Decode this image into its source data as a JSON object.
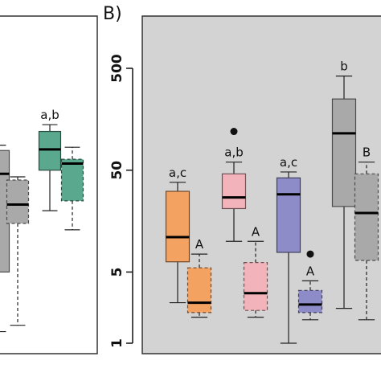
{
  "chart_data": [
    {
      "type": "box",
      "panel": "A",
      "boxes": [
        {
          "group": 1,
          "variant": "solid",
          "color": "#a9a9a9",
          "min": 1.3,
          "q1": 5,
          "median": 46,
          "q3": 78,
          "max": 88,
          "letters": ""
        },
        {
          "group": 1,
          "variant": "dashed",
          "color": "#a9a9a9",
          "min": 1.5,
          "q1": 15,
          "median": 23,
          "q3": 40,
          "max": 43,
          "letters": ""
        },
        {
          "group": 2,
          "variant": "solid",
          "color": "#5aa88e",
          "min": 20,
          "q1": 50,
          "median": 80,
          "q3": 120,
          "max": 140,
          "letters": "a,b"
        },
        {
          "group": 2,
          "variant": "dashed",
          "color": "#5aa88e",
          "min": 13,
          "q1": 25,
          "median": 58,
          "q3": 64,
          "max": 84,
          "letters": ""
        }
      ]
    },
    {
      "type": "box",
      "panel": "B",
      "panel_label": "B)",
      "y_scale": "log",
      "ylim": [
        0.95,
        1000
      ],
      "y_ticks": [
        1,
        5,
        50,
        500
      ],
      "y_tick_labels": [
        "1",
        "5",
        "50",
        "500"
      ],
      "background": "#d3d3d3",
      "boxes": [
        {
          "group": 1,
          "variant": "solid",
          "color": "#f4a261",
          "min": 2.5,
          "q1": 6.3,
          "median": 11,
          "q3": 31,
          "max": 38,
          "outliers": [],
          "letters": "a,c"
        },
        {
          "group": 1,
          "variant": "dashed",
          "color": "#f4a261",
          "min": 1.8,
          "q1": 2.0,
          "median": 2.5,
          "q3": 5.5,
          "max": 7.5,
          "outliers": [],
          "letters": "A"
        },
        {
          "group": 2,
          "variant": "solid",
          "color": "#f2b4ba",
          "min": 10,
          "q1": 21,
          "median": 27,
          "q3": 46,
          "max": 60,
          "outliers": [
            120
          ],
          "letters": "a,b"
        },
        {
          "group": 2,
          "variant": "dashed",
          "color": "#f2b4ba",
          "min": 1.8,
          "q1": 2.1,
          "median": 3.1,
          "q3": 6.2,
          "max": 10,
          "outliers": [],
          "letters": "A"
        },
        {
          "group": 3,
          "variant": "solid",
          "color": "#8e8cc8",
          "min": 1.0,
          "q1": 7.8,
          "median": 29,
          "q3": 42,
          "max": 48,
          "outliers": [],
          "letters": "a,c"
        },
        {
          "group": 3,
          "variant": "dashed",
          "color": "#8e8cc8",
          "min": 1.7,
          "q1": 2.0,
          "median": 2.4,
          "q3": 3.3,
          "max": 4.1,
          "outliers": [
            7.5
          ],
          "letters": "A"
        },
        {
          "group": 4,
          "variant": "solid",
          "color": "#a9a9a9",
          "min": 2.2,
          "q1": 22,
          "median": 115,
          "q3": 250,
          "max": 420,
          "outliers": [],
          "letters": "b"
        },
        {
          "group": 4,
          "variant": "dashed",
          "color": "#a9a9a9",
          "min": 1.7,
          "q1": 6.5,
          "median": 19,
          "q3": 46,
          "max": 60,
          "outliers": [],
          "letters": "B"
        }
      ]
    }
  ]
}
